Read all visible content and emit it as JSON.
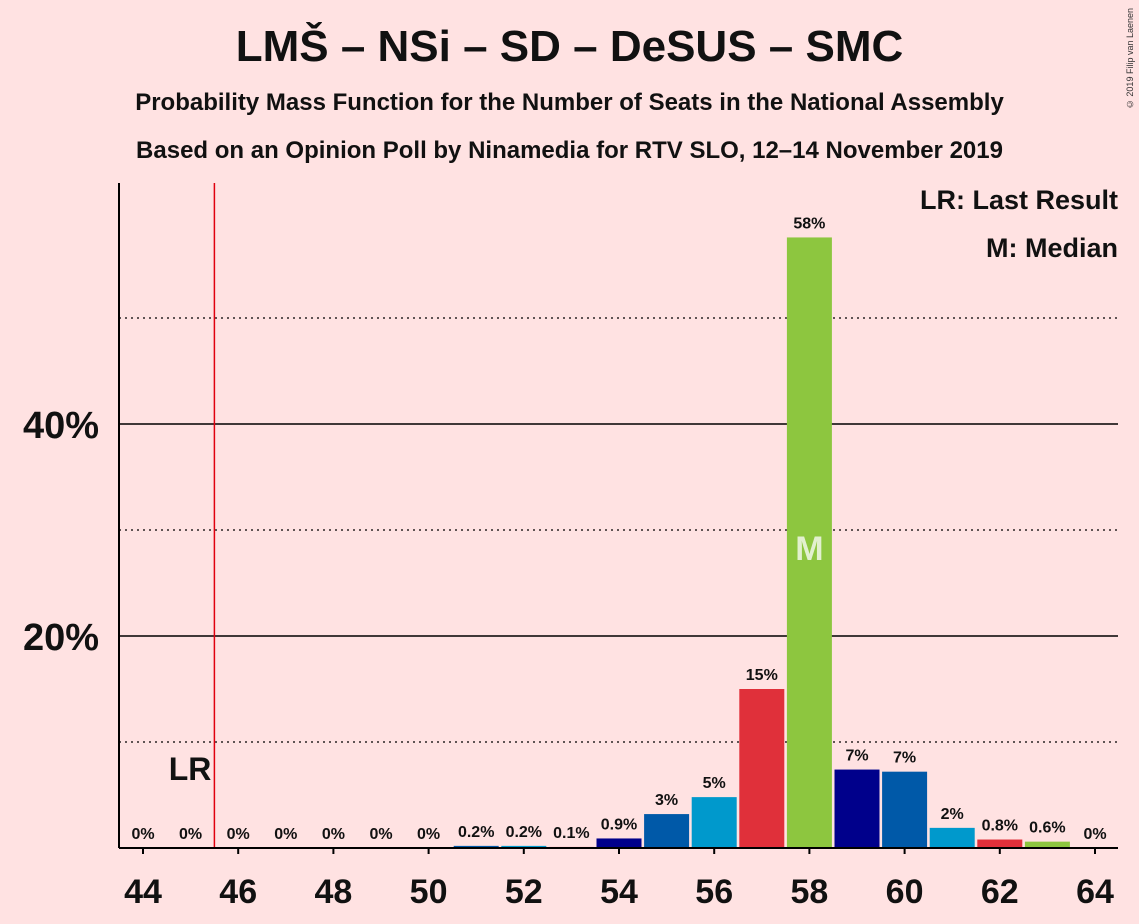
{
  "title": "LMŠ – NSi – SD – DeSUS – SMC",
  "subtitle1": "Probability Mass Function for the Number of Seats in the National Assembly",
  "subtitle2": "Based on an Opinion Poll by Ninamedia for RTV SLO, 12–14 November 2019",
  "copyright": "© 2019 Filip van Laenen",
  "legend": {
    "lr": "LR: Last Result",
    "m": "M: Median"
  },
  "lr_marker_label": "LR",
  "median_marker_label": "M",
  "colors": {
    "background": "#FFE2E2",
    "lms_blue": "#0059A8",
    "nsi_navy": "#00008B",
    "desus_cyan": "#0099CC",
    "sd_red": "#E0303A",
    "smc_green": "#8DC63F",
    "lr_line": "#E0000E"
  },
  "chart_data": {
    "type": "bar",
    "title": "LMŠ – NSi – SD – DeSUS – SMC",
    "xlabel": "",
    "ylabel": "",
    "ylim": [
      0,
      62
    ],
    "yticks": [
      20,
      40
    ],
    "ytick_labels": [
      "20%",
      "40%"
    ],
    "y_dotted_lines": [
      10,
      30,
      50
    ],
    "xticks": [
      44,
      46,
      48,
      50,
      52,
      54,
      56,
      58,
      60,
      62,
      64
    ],
    "xtick_labels": [
      "44",
      "46",
      "48",
      "50",
      "52",
      "54",
      "56",
      "58",
      "60",
      "62",
      "64"
    ],
    "last_result": 45.5,
    "median": 58,
    "categories": [
      44,
      45,
      46,
      47,
      48,
      49,
      50,
      51,
      52,
      53,
      54,
      55,
      56,
      57,
      58,
      59,
      60,
      61,
      62,
      63,
      64
    ],
    "values": [
      0,
      0,
      0,
      0,
      0,
      0,
      0,
      0.2,
      0.2,
      0.1,
      0.9,
      3.2,
      4.8,
      15.0,
      57.6,
      7.4,
      7.2,
      1.9,
      0.8,
      0.6,
      0
    ],
    "labels": [
      "0%",
      "0%",
      "0%",
      "0%",
      "0%",
      "0%",
      "0%",
      "0.2%",
      "0.2%",
      "0.1%",
      "0.9%",
      "3%",
      "5%",
      "15%",
      "58%",
      "7%",
      "7%",
      "2%",
      "0.8%",
      "0.6%",
      "0%"
    ],
    "bar_colors": [
      "#0059A8",
      "#00008B",
      "#0059A8",
      "#0099CC",
      "#E0303A",
      "#8DC63F",
      "#00008B",
      "#0059A8",
      "#0099CC",
      "#E0303A",
      "#00008B",
      "#0059A8",
      "#0099CC",
      "#E0303A",
      "#8DC63F",
      "#00008B",
      "#0059A8",
      "#0099CC",
      "#E0303A",
      "#8DC63F",
      "#00008B"
    ]
  }
}
